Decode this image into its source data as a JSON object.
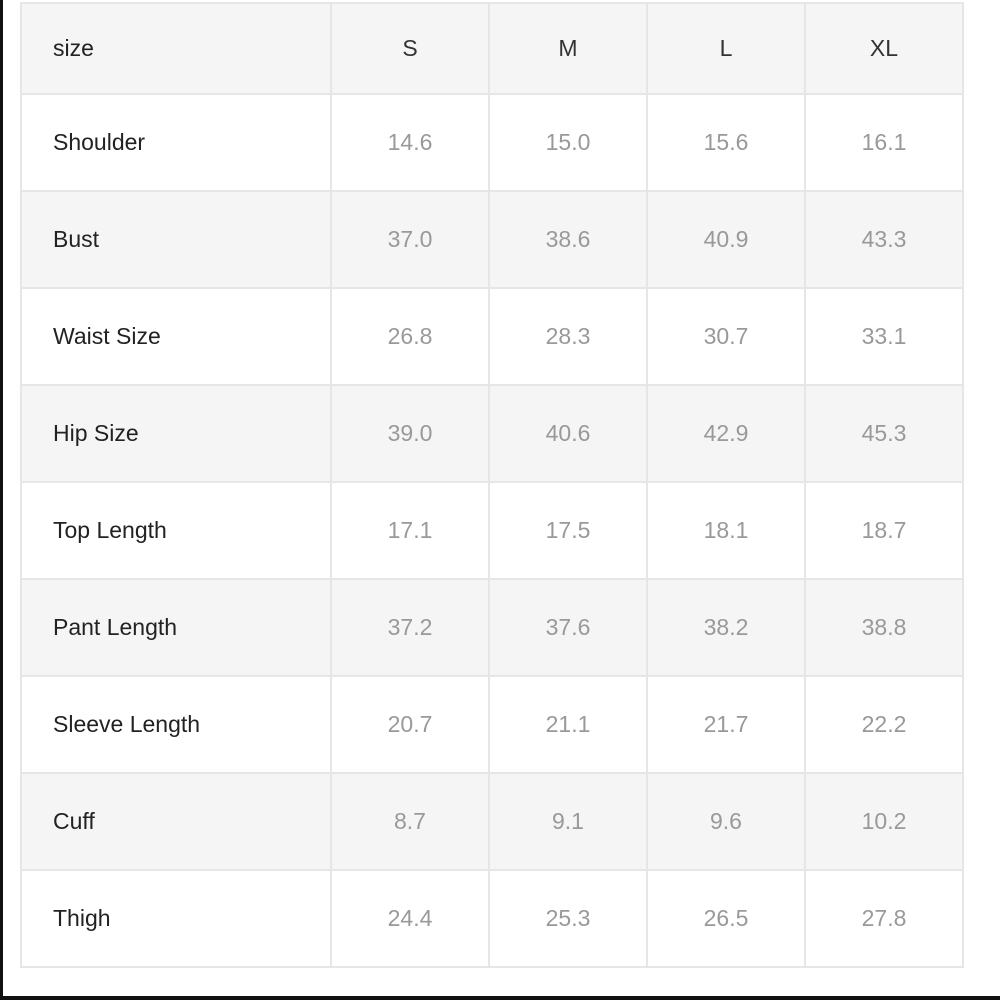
{
  "table": {
    "headers": [
      "size",
      "S",
      "M",
      "L",
      "XL"
    ],
    "rows": [
      {
        "label": "Shoulder",
        "values": [
          "14.6",
          "15.0",
          "15.6",
          "16.1"
        ]
      },
      {
        "label": "Bust",
        "values": [
          "37.0",
          "38.6",
          "40.9",
          "43.3"
        ]
      },
      {
        "label": "Waist Size",
        "values": [
          "26.8",
          "28.3",
          "30.7",
          "33.1"
        ]
      },
      {
        "label": "Hip Size",
        "values": [
          "39.0",
          "40.6",
          "42.9",
          "45.3"
        ]
      },
      {
        "label": "Top Length",
        "values": [
          "17.1",
          "17.5",
          "18.1",
          "18.7"
        ]
      },
      {
        "label": "Pant Length",
        "values": [
          "37.2",
          "37.6",
          "38.2",
          "38.8"
        ]
      },
      {
        "label": "Sleeve Length",
        "values": [
          "20.7",
          "21.1",
          "21.7",
          "22.2"
        ]
      },
      {
        "label": "Cuff",
        "values": [
          "8.7",
          "9.1",
          "9.6",
          "10.2"
        ]
      },
      {
        "label": "Thigh",
        "values": [
          "24.4",
          "25.3",
          "26.5",
          "27.8"
        ]
      }
    ]
  }
}
